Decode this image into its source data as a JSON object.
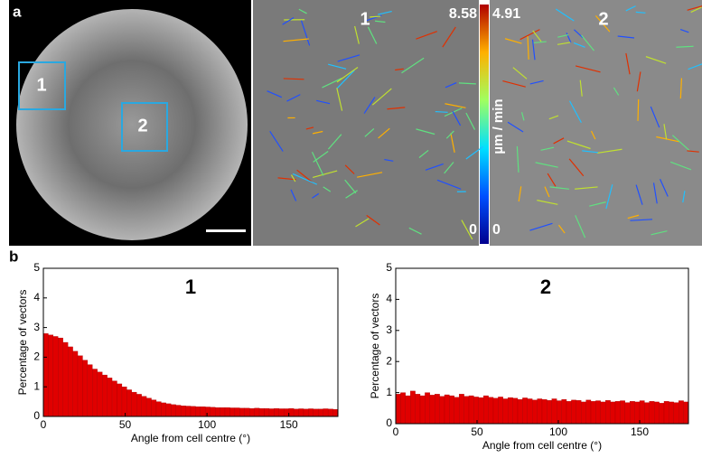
{
  "figure": {
    "panel_a": "a",
    "panel_b": "b",
    "box_1": "1",
    "box_2": "2",
    "image_1": "1",
    "image_2": "2",
    "colorbar_1_max": "8.58",
    "colorbar_2_max": "4.91",
    "colorbar_1_min": "0",
    "colorbar_2_min": "0",
    "colorbar_unit": "µm / min"
  },
  "chart_data": [
    {
      "type": "histogram",
      "title": "1",
      "x_label": "Angle from cell centre (°)",
      "y_label": "Percentage of vectors",
      "color": "#e00000",
      "bins": [
        0,
        3,
        6,
        9,
        12,
        15,
        18,
        21,
        24,
        27,
        30,
        33,
        36,
        39,
        42,
        45,
        48,
        51,
        54,
        57,
        60,
        63,
        66,
        69,
        72,
        75,
        78,
        81,
        84,
        87,
        90,
        93,
        96,
        99,
        102,
        105,
        108,
        111,
        114,
        117,
        120,
        123,
        126,
        129,
        132,
        135,
        138,
        141,
        144,
        147,
        150,
        153,
        156,
        159,
        162,
        165,
        168,
        171,
        174,
        177,
        180
      ],
      "values": [
        2.8,
        2.75,
        2.7,
        2.65,
        2.5,
        2.35,
        2.2,
        2.05,
        1.9,
        1.75,
        1.6,
        1.5,
        1.4,
        1.3,
        1.2,
        1.1,
        1.0,
        0.9,
        0.82,
        0.75,
        0.68,
        0.62,
        0.56,
        0.5,
        0.46,
        0.43,
        0.4,
        0.38,
        0.36,
        0.35,
        0.34,
        0.33,
        0.33,
        0.32,
        0.31,
        0.3,
        0.3,
        0.3,
        0.29,
        0.29,
        0.28,
        0.28,
        0.27,
        0.28,
        0.27,
        0.27,
        0.26,
        0.27,
        0.26,
        0.26,
        0.27,
        0.25,
        0.26,
        0.25,
        0.26,
        0.25,
        0.25,
        0.26,
        0.25,
        0.24
      ],
      "xlim": [
        0,
        180
      ],
      "xticks": [
        0,
        50,
        100,
        150
      ],
      "ylim": [
        0,
        5
      ],
      "yticks": [
        0,
        1,
        2,
        3,
        4,
        5
      ]
    },
    {
      "type": "histogram",
      "title": "2",
      "x_label": "Angle from cell centre (°)",
      "y_label": "Percentage of vectors",
      "color": "#e00000",
      "bins": [
        0,
        3,
        6,
        9,
        12,
        15,
        18,
        21,
        24,
        27,
        30,
        33,
        36,
        39,
        42,
        45,
        48,
        51,
        54,
        57,
        60,
        63,
        66,
        69,
        72,
        75,
        78,
        81,
        84,
        87,
        90,
        93,
        96,
        99,
        102,
        105,
        108,
        111,
        114,
        117,
        120,
        123,
        126,
        129,
        132,
        135,
        138,
        141,
        144,
        147,
        150,
        153,
        156,
        159,
        162,
        165,
        168,
        171,
        174,
        177,
        180
      ],
      "values": [
        0.95,
        1.0,
        0.9,
        1.05,
        0.95,
        0.9,
        1.0,
        0.92,
        0.95,
        0.88,
        0.93,
        0.9,
        0.85,
        0.95,
        0.88,
        0.9,
        0.86,
        0.84,
        0.9,
        0.85,
        0.82,
        0.86,
        0.8,
        0.84,
        0.82,
        0.78,
        0.83,
        0.8,
        0.76,
        0.8,
        0.78,
        0.75,
        0.8,
        0.74,
        0.78,
        0.72,
        0.76,
        0.75,
        0.7,
        0.76,
        0.72,
        0.74,
        0.7,
        0.75,
        0.7,
        0.72,
        0.74,
        0.68,
        0.72,
        0.7,
        0.74,
        0.68,
        0.72,
        0.7,
        0.66,
        0.72,
        0.7,
        0.68,
        0.74,
        0.7
      ],
      "xlim": [
        0,
        180
      ],
      "xticks": [
        0,
        50,
        100,
        150
      ],
      "ylim": [
        0,
        5
      ],
      "yticks": [
        0,
        1,
        2,
        3,
        4,
        5
      ]
    }
  ]
}
